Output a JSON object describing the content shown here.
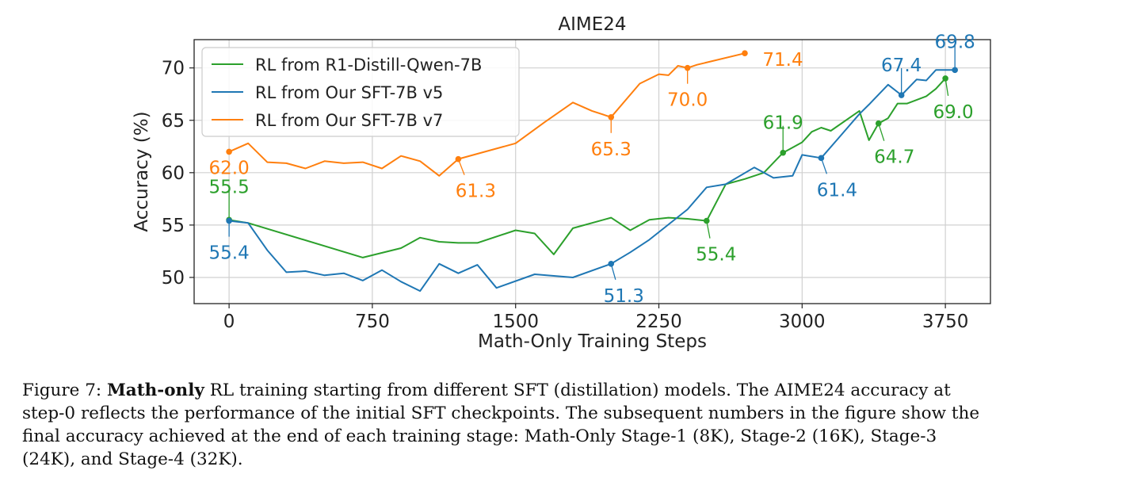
{
  "chart_data": {
    "type": "line",
    "title": "AIME24",
    "xlabel": "Math-Only Training Steps",
    "ylabel": "Accuracy (%)",
    "xlim": [
      -183,
      3986
    ],
    "ylim": [
      47.5,
      72.7
    ],
    "xticks": [
      0,
      750,
      1500,
      2250,
      3000,
      3750
    ],
    "yticks": [
      50,
      55,
      60,
      65,
      70
    ],
    "grid": true,
    "legend_position": "top-left",
    "series": [
      {
        "name": "RL from R1-Distill-Qwen-7B",
        "color": "#2ca02c",
        "x": [
          0,
          100,
          700,
          900,
          1000,
          1100,
          1200,
          1300,
          1500,
          1600,
          1700,
          1800,
          2000,
          2100,
          2200,
          2300,
          2400,
          2500,
          2600,
          2700,
          2800,
          2900,
          3000,
          3050,
          3100,
          3150,
          3300,
          3350,
          3400,
          3450,
          3500,
          3550,
          3650,
          3700,
          3750
        ],
        "y": [
          55.5,
          55.2,
          51.9,
          52.8,
          53.8,
          53.4,
          53.3,
          53.3,
          54.5,
          54.2,
          52.2,
          54.7,
          55.7,
          54.5,
          55.5,
          55.7,
          55.6,
          55.4,
          58.9,
          59.4,
          60.0,
          61.9,
          62.9,
          63.9,
          64.3,
          64.0,
          65.9,
          63.1,
          64.7,
          65.2,
          66.6,
          66.6,
          67.3,
          68.0,
          69.0
        ],
        "annotations": [
          {
            "x": 0,
            "y": 55.5,
            "label": "55.5"
          },
          {
            "x": 2500,
            "y": 55.4,
            "label": "55.4"
          },
          {
            "x": 2900,
            "y": 61.9,
            "label": "61.9"
          },
          {
            "x": 3400,
            "y": 64.7,
            "label": "64.7"
          },
          {
            "x": 3750,
            "y": 69.0,
            "label": "69.0"
          }
        ]
      },
      {
        "name": "RL from Our SFT-7B v5",
        "color": "#1f77b4",
        "x": [
          0,
          100,
          200,
          300,
          400,
          500,
          600,
          700,
          800,
          900,
          1000,
          1100,
          1200,
          1300,
          1400,
          1600,
          1800,
          2000,
          2100,
          2200,
          2400,
          2500,
          2600,
          2750,
          2850,
          2950,
          3000,
          3100,
          3200,
          3300,
          3350,
          3450,
          3520,
          3600,
          3650,
          3700,
          3800
        ],
        "y": [
          55.4,
          55.2,
          52.6,
          50.5,
          50.6,
          50.2,
          50.4,
          49.7,
          50.7,
          49.6,
          48.7,
          51.3,
          50.4,
          51.2,
          49.0,
          50.3,
          50.0,
          51.3,
          52.4,
          53.6,
          56.5,
          58.6,
          58.9,
          60.5,
          59.5,
          59.7,
          61.7,
          61.4,
          63.5,
          65.6,
          66.5,
          68.4,
          67.4,
          68.9,
          68.8,
          69.8,
          69.8
        ],
        "annotations": [
          {
            "x": 0,
            "y": 55.4,
            "label": "55.4"
          },
          {
            "x": 2000,
            "y": 51.3,
            "label": "51.3"
          },
          {
            "x": 3100,
            "y": 61.4,
            "label": "61.4"
          },
          {
            "x": 3520,
            "y": 67.4,
            "label": "67.4"
          },
          {
            "x": 3800,
            "y": 69.8,
            "label": "69.8"
          }
        ]
      },
      {
        "name": "RL from Our SFT-7B v7",
        "color": "#ff7f0e",
        "x": [
          0,
          100,
          200,
          300,
          400,
          500,
          600,
          700,
          800,
          900,
          1000,
          1100,
          1200,
          1300,
          1500,
          1650,
          1800,
          1900,
          2000,
          2150,
          2250,
          2300,
          2350,
          2400,
          2450,
          2700
        ],
        "y": [
          62.0,
          62.8,
          61.0,
          60.9,
          60.4,
          61.1,
          60.9,
          61.0,
          60.4,
          61.6,
          61.1,
          59.7,
          61.3,
          61.8,
          62.8,
          64.8,
          66.7,
          65.9,
          65.3,
          68.5,
          69.4,
          69.3,
          70.2,
          70.0,
          70.3,
          71.4
        ],
        "annotations": [
          {
            "x": 0,
            "y": 62.0,
            "label": "62.0"
          },
          {
            "x": 1200,
            "y": 61.3,
            "label": "61.3"
          },
          {
            "x": 2000,
            "y": 65.3,
            "label": "65.3"
          },
          {
            "x": 2400,
            "y": 70.0,
            "label": "70.0"
          },
          {
            "x": 2700,
            "y": 71.4,
            "label": "71.4"
          }
        ]
      }
    ]
  },
  "caption": {
    "prefix": "Figure 7: ",
    "bold": "Math-only",
    "lines": [
      " RL training starting from different SFT (distillation) models. The AIME24 accuracy at",
      "step-0 reflects the performance of the initial SFT checkpoints. The subsequent numbers in the figure show the",
      "final accuracy achieved at the end of each training stage: Math-Only Stage-1 (8K), Stage-2 (16K), Stage-3",
      "(24K), and Stage-4 (32K)."
    ]
  }
}
